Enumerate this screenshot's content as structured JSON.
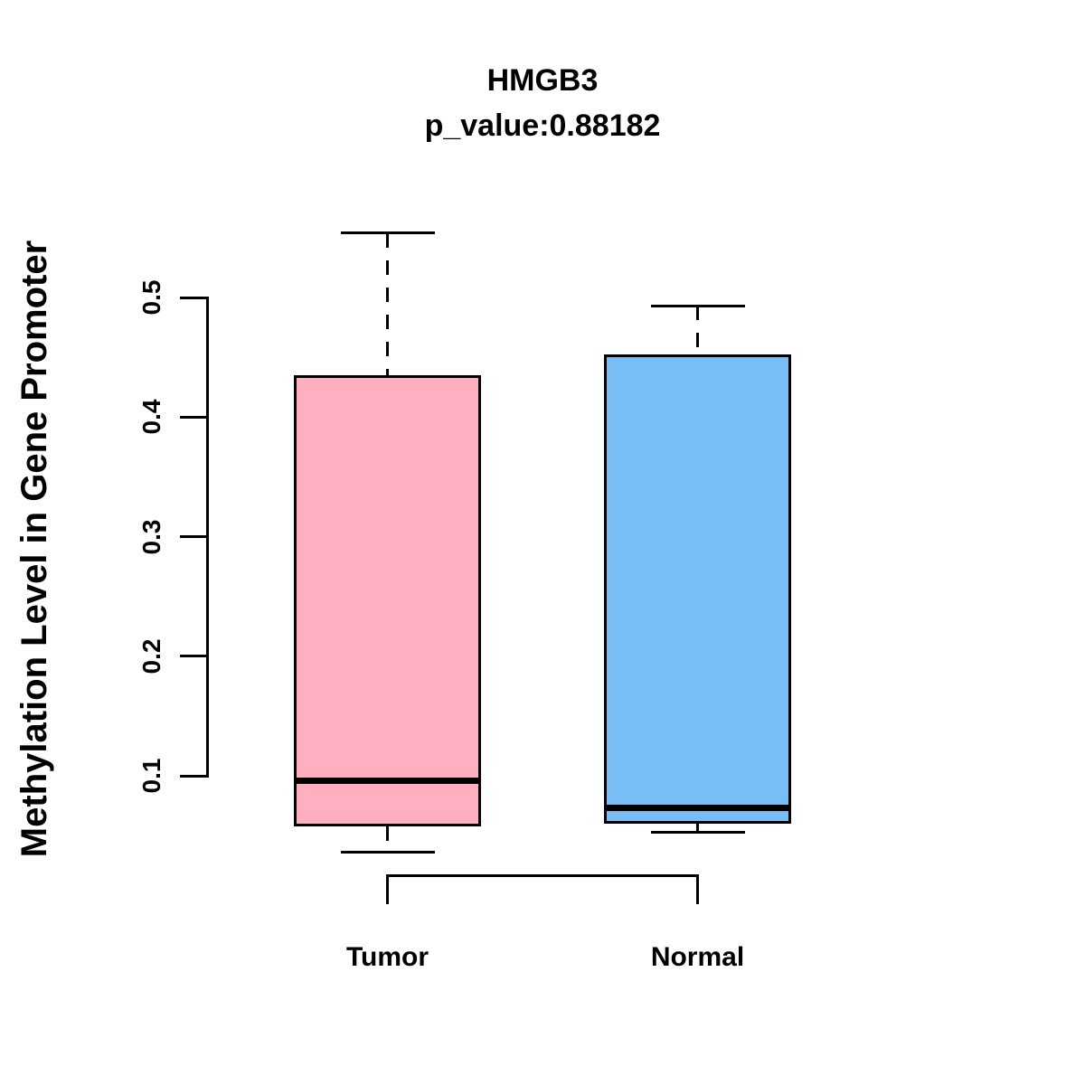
{
  "title": "HMGB3",
  "subtitle": "p_value:0.88182",
  "chart_data": {
    "type": "boxplot",
    "title": "HMGB3",
    "subtitle": "p_value:0.88182",
    "ylabel": "Methylation Level in Gene Promoter",
    "xlabel": "",
    "categories": [
      "Tumor",
      "Normal"
    ],
    "yticks": [
      0.1,
      0.2,
      0.3,
      0.4,
      0.5
    ],
    "ylim": [
      0.1,
      0.5
    ],
    "grid": false,
    "legend": false,
    "whisker_style": "dashed",
    "box_border_color": "#000000",
    "series": [
      {
        "name": "Tumor",
        "fill": "#FFAFC0",
        "min": 0.036,
        "q1": 0.058,
        "median": 0.096,
        "q3": 0.435,
        "max": 0.554
      },
      {
        "name": "Normal",
        "fill": "#76BEF5",
        "min": 0.053,
        "q1": 0.06,
        "median": 0.073,
        "q3": 0.452,
        "max": 0.493
      }
    ]
  }
}
